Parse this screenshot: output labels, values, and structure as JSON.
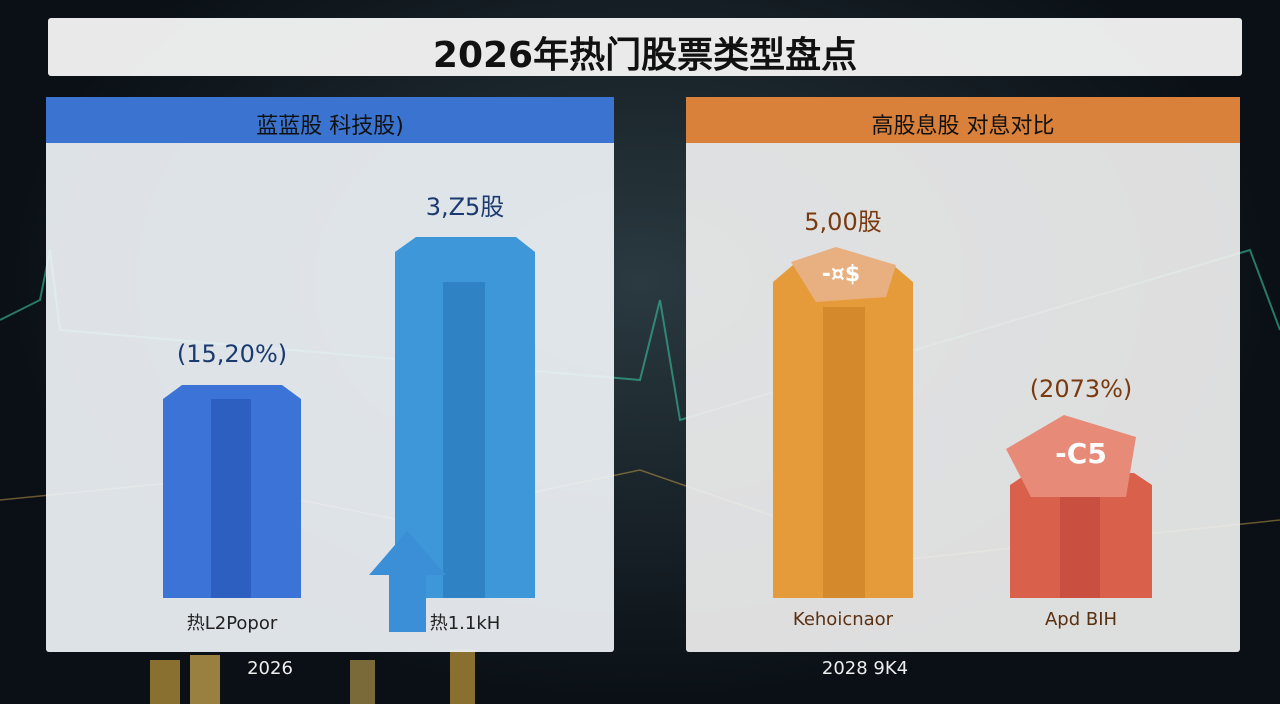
{
  "title": "2026年热门股票类型盘点",
  "panels": [
    {
      "header": "蓝蓝股  科技股)",
      "items": [
        {
          "value_label": "(15,20%)",
          "label": "热L2Popor"
        },
        {
          "value_label": "3,Z5股",
          "label": "热1.1kH"
        }
      ],
      "footer": "2026"
    },
    {
      "header": "高股息股  对息对比",
      "items": [
        {
          "value_label": "5,00股",
          "badge": "-¤$",
          "label": "Kehoicnaor"
        },
        {
          "value_label": "(2073%)",
          "badge": "-C5",
          "label": "Apd BIH"
        }
      ],
      "footer": "2028 9K4"
    }
  ]
}
